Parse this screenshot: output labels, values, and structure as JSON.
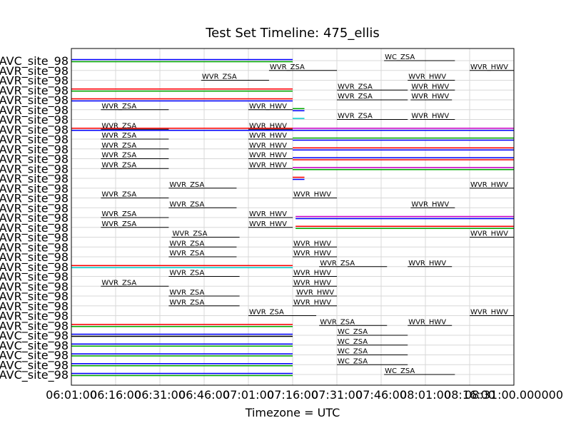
{
  "chart_data": {
    "type": "timeline",
    "title": "Test Set Timeline: 475_ellis",
    "xlabel": "Timezone = UTC",
    "xlim": [
      "06:01:00",
      "08:31:00"
    ],
    "x_ticks": [
      {
        "value": "06:01:00",
        "label": "06:01:00"
      },
      {
        "value": "06:16:00",
        "label": "06:16:00"
      },
      {
        "value": "06:31:00",
        "label": "06:31:00"
      },
      {
        "value": "06:46:00",
        "label": "06:46:00"
      },
      {
        "value": "07:01:00",
        "label": "07:01:00"
      },
      {
        "value": "07:16:00",
        "label": "07:16:00"
      },
      {
        "value": "07:31:00",
        "label": "07:31:00"
      },
      {
        "value": "07:46:00",
        "label": "07:46:00"
      },
      {
        "value": "08:01:00",
        "label": "08:01:00"
      },
      {
        "value": "08:16:00",
        "label": "08:16:00"
      },
      {
        "value": "08:31:00",
        "label": "08:31:00.000000"
      }
    ],
    "grid": true,
    "colors": {
      "blue": "#0000ff",
      "green": "#00aa00",
      "red": "#ff0000",
      "cyan": "#00cccc",
      "magenta": "#cc00cc",
      "black": "#000000"
    },
    "rows": [
      {
        "label": "AVC_site_98",
        "segments": [
          {
            "name": "WC_ZSA",
            "start": "07:47:00",
            "end": "08:11:00"
          }
        ],
        "bands": [
          {
            "start": "06:01:00",
            "end": "07:16:00",
            "colors": [
              "blue",
              "green"
            ]
          }
        ]
      },
      {
        "label": "AVR_site_98",
        "segments": [
          {
            "name": "WVR_ZSA",
            "start": "07:08:00",
            "end": "07:31:00"
          },
          {
            "name": "WVR_HWV",
            "start": "08:16:00",
            "end": "08:31:00"
          }
        ],
        "bands": []
      },
      {
        "label": "AVR_site_98",
        "segments": [
          {
            "name": "WVR_ZSA",
            "start": "06:45:00",
            "end": "07:08:00"
          },
          {
            "name": "WVR_HWV",
            "start": "07:55:00",
            "end": "08:11:00"
          }
        ],
        "bands": []
      },
      {
        "label": "AVR_site_98",
        "segments": [
          {
            "name": "WVR_ZSA",
            "start": "07:31:00",
            "end": "07:55:00"
          },
          {
            "name": "WVR_HWV",
            "start": "07:56:00",
            "end": "08:11:00"
          }
        ],
        "bands": [
          {
            "start": "06:01:00",
            "end": "07:16:00",
            "colors": [
              "red",
              "green"
            ]
          }
        ]
      },
      {
        "label": "AVR_site_98",
        "segments": [
          {
            "name": "WVR_ZSA",
            "start": "07:31:00",
            "end": "07:55:00"
          },
          {
            "name": "WVR_HWV",
            "start": "07:56:00",
            "end": "08:10:00"
          }
        ],
        "bands": [
          {
            "start": "06:01:00",
            "end": "07:16:00",
            "colors": [
              "red",
              "blue"
            ]
          }
        ]
      },
      {
        "label": "AVR_site_98",
        "segments": [
          {
            "name": "WVR_ZSA",
            "start": "06:11:00",
            "end": "06:34:00"
          },
          {
            "name": "WVR_HWV",
            "start": "07:01:00",
            "end": "07:16:00"
          }
        ],
        "bands": [
          {
            "start": "07:16:00",
            "end": "07:20:00",
            "colors": [
              "green",
              "blue"
            ]
          }
        ]
      },
      {
        "label": "AVR_site_98",
        "segments": [
          {
            "name": "WVR_ZSA",
            "start": "07:31:00",
            "end": "07:55:00"
          },
          {
            "name": "WVR_HWV",
            "start": "07:56:00",
            "end": "08:11:00"
          }
        ],
        "bands": [
          {
            "start": "07:16:00",
            "end": "07:20:00",
            "colors": [
              "cyan"
            ]
          }
        ]
      },
      {
        "label": "AVR_site_98",
        "segments": [
          {
            "name": "WVR_ZSA",
            "start": "06:11:00",
            "end": "06:34:00"
          },
          {
            "name": "WVR_HWV",
            "start": "07:01:00",
            "end": "07:16:00"
          }
        ],
        "bands": [
          {
            "start": "06:01:00",
            "end": "07:16:00",
            "colors": [
              "red",
              "blue"
            ]
          },
          {
            "start": "07:16:00",
            "end": "08:31:00",
            "colors": [
              "magenta",
              "blue"
            ]
          }
        ]
      },
      {
        "label": "AVR_site_98",
        "segments": [
          {
            "name": "WVR_ZSA",
            "start": "06:11:00",
            "end": "06:34:00"
          },
          {
            "name": "WVR_HWV",
            "start": "07:01:00",
            "end": "07:16:00"
          }
        ],
        "bands": [
          {
            "start": "07:16:00",
            "end": "08:31:00",
            "colors": [
              "green",
              "blue"
            ]
          }
        ]
      },
      {
        "label": "AVR_site_98",
        "segments": [
          {
            "name": "WVR_ZSA",
            "start": "06:11:00",
            "end": "06:34:00"
          },
          {
            "name": "WVR_HWV",
            "start": "07:01:00",
            "end": "07:16:00"
          }
        ],
        "bands": [
          {
            "start": "07:16:00",
            "end": "08:31:00",
            "colors": [
              "red",
              "blue"
            ]
          }
        ]
      },
      {
        "label": "AVR_site_98",
        "segments": [
          {
            "name": "WVR_ZSA",
            "start": "06:11:00",
            "end": "06:34:00"
          },
          {
            "name": "WVR_HWV",
            "start": "07:01:00",
            "end": "07:16:00"
          }
        ],
        "bands": [
          {
            "start": "07:16:00",
            "end": "08:31:00",
            "colors": [
              "blue",
              "red"
            ]
          }
        ]
      },
      {
        "label": "AVR_site_98",
        "segments": [
          {
            "name": "WVR_ZSA",
            "start": "06:11:00",
            "end": "06:34:00"
          },
          {
            "name": "WVR_HWV",
            "start": "07:01:00",
            "end": "07:16:00"
          }
        ],
        "bands": [
          {
            "start": "07:16:00",
            "end": "08:31:00",
            "colors": [
              "magenta",
              "green"
            ]
          }
        ]
      },
      {
        "label": "AVR_site_98",
        "segments": [],
        "bands": [
          {
            "start": "07:16:00",
            "end": "07:20:00",
            "colors": [
              "red",
              "blue"
            ]
          }
        ]
      },
      {
        "label": "AVR_site_98",
        "segments": [
          {
            "name": "WVR_ZSA",
            "start": "06:34:00",
            "end": "06:57:00"
          },
          {
            "name": "WVR_HWV",
            "start": "08:16:00",
            "end": "08:31:00"
          }
        ],
        "bands": []
      },
      {
        "label": "AVR_site_98",
        "segments": [
          {
            "name": "WVR_ZSA",
            "start": "06:11:00",
            "end": "06:34:00"
          },
          {
            "name": "WVR_HWV",
            "start": "07:16:00",
            "end": "07:31:00"
          }
        ],
        "bands": []
      },
      {
        "label": "AVR_site_98",
        "segments": [
          {
            "name": "WVR_ZSA",
            "start": "06:34:00",
            "end": "06:57:00"
          },
          {
            "name": "WVR_HWV",
            "start": "07:56:00",
            "end": "08:11:00"
          }
        ],
        "bands": []
      },
      {
        "label": "AVR_site_98",
        "segments": [
          {
            "name": "WVR_ZSA",
            "start": "06:11:00",
            "end": "06:34:00"
          },
          {
            "name": "WVR_HWV",
            "start": "07:01:00",
            "end": "07:16:00"
          }
        ],
        "bands": [
          {
            "start": "07:17:00",
            "end": "08:31:00",
            "colors": [
              "magenta",
              "blue"
            ]
          }
        ]
      },
      {
        "label": "AVR_site_98",
        "segments": [
          {
            "name": "WVR_ZSA",
            "start": "06:11:00",
            "end": "06:34:00"
          },
          {
            "name": "WVR_HWV",
            "start": "07:01:00",
            "end": "07:16:00"
          }
        ],
        "bands": [
          {
            "start": "07:17:00",
            "end": "08:31:00",
            "colors": [
              "red",
              "green"
            ]
          }
        ]
      },
      {
        "label": "AVR_site_98",
        "segments": [
          {
            "name": "WVR_ZSA",
            "start": "06:35:00",
            "end": "06:58:00"
          },
          {
            "name": "WVR_HWV",
            "start": "08:16:00",
            "end": "08:31:00"
          }
        ],
        "bands": []
      },
      {
        "label": "AVR_site_98",
        "segments": [
          {
            "name": "WVR_ZSA",
            "start": "06:34:00",
            "end": "06:57:00"
          },
          {
            "name": "WVR_HWV",
            "start": "07:16:00",
            "end": "07:31:00"
          }
        ],
        "bands": []
      },
      {
        "label": "AVR_site_98",
        "segments": [
          {
            "name": "WVR_ZSA",
            "start": "06:34:00",
            "end": "06:57:00"
          },
          {
            "name": "WVR_HWV",
            "start": "07:16:00",
            "end": "07:31:00"
          }
        ],
        "bands": []
      },
      {
        "label": "AVR_site_98",
        "segments": [
          {
            "name": "WVR_ZSA",
            "start": "07:25:00",
            "end": "07:48:00"
          },
          {
            "name": "WVR_HWV",
            "start": "07:55:00",
            "end": "08:10:00"
          }
        ],
        "bands": [
          {
            "start": "06:01:00",
            "end": "07:16:00",
            "colors": [
              "red",
              "cyan"
            ]
          }
        ]
      },
      {
        "label": "AVR_site_98",
        "segments": [
          {
            "name": "WVR_ZSA",
            "start": "06:34:00",
            "end": "06:58:00"
          },
          {
            "name": "WVR_HWV",
            "start": "07:16:00",
            "end": "07:31:00"
          }
        ],
        "bands": []
      },
      {
        "label": "AVR_site_98",
        "segments": [
          {
            "name": "WVR_ZSA",
            "start": "06:11:00",
            "end": "06:34:00"
          },
          {
            "name": "WVR_HWV",
            "start": "07:16:00",
            "end": "07:31:00"
          }
        ],
        "bands": []
      },
      {
        "label": "AVR_site_98",
        "segments": [
          {
            "name": "WVR_ZSA",
            "start": "06:34:00",
            "end": "06:58:00"
          },
          {
            "name": "WVR_HWV",
            "start": "07:17:00",
            "end": "07:31:00"
          }
        ],
        "bands": []
      },
      {
        "label": "AVR_site_98",
        "segments": [
          {
            "name": "WVR_ZSA",
            "start": "06:34:00",
            "end": "06:58:00"
          },
          {
            "name": "WVR_HWV",
            "start": "07:16:00",
            "end": "07:31:00"
          }
        ],
        "bands": []
      },
      {
        "label": "AVR_site_98",
        "segments": [
          {
            "name": "WVR_ZSA",
            "start": "07:01:00",
            "end": "07:24:00"
          },
          {
            "name": "WVR_HWV",
            "start": "08:16:00",
            "end": "08:31:00"
          }
        ],
        "bands": []
      },
      {
        "label": "AVR_site_98",
        "segments": [
          {
            "name": "WVR_ZSA",
            "start": "07:25:00",
            "end": "07:48:00"
          },
          {
            "name": "WVR_HWV",
            "start": "07:55:00",
            "end": "08:10:00"
          }
        ],
        "bands": [
          {
            "start": "06:01:00",
            "end": "07:16:00",
            "colors": [
              "red",
              "green"
            ]
          }
        ]
      },
      {
        "label": "AVC_site_98",
        "segments": [
          {
            "name": "WC_ZSA",
            "start": "07:31:00",
            "end": "07:55:00"
          }
        ],
        "bands": [
          {
            "start": "06:01:00",
            "end": "07:16:00",
            "colors": [
              "blue",
              "black"
            ]
          }
        ]
      },
      {
        "label": "AVC_site_98",
        "segments": [
          {
            "name": "WC_ZSA",
            "start": "07:31:00",
            "end": "07:55:00"
          }
        ],
        "bands": [
          {
            "start": "06:01:00",
            "end": "07:16:00",
            "colors": [
              "blue",
              "green"
            ]
          }
        ]
      },
      {
        "label": "AVC_site_98",
        "segments": [
          {
            "name": "WC_ZSA",
            "start": "07:31:00",
            "end": "07:55:00"
          }
        ],
        "bands": [
          {
            "start": "06:01:00",
            "end": "07:16:00",
            "colors": [
              "blue",
              "green"
            ]
          }
        ]
      },
      {
        "label": "AVC_site_98",
        "segments": [
          {
            "name": "WC_ZSA",
            "start": "07:31:00",
            "end": "07:55:00"
          }
        ],
        "bands": [
          {
            "start": "06:01:00",
            "end": "07:16:00",
            "colors": [
              "blue",
              "green"
            ]
          }
        ]
      },
      {
        "label": "AVC_site_98",
        "segments": [
          {
            "name": "WC_ZSA",
            "start": "07:47:00",
            "end": "08:11:00"
          }
        ],
        "bands": [
          {
            "start": "06:01:00",
            "end": "07:16:00",
            "colors": [
              "blue",
              "green"
            ]
          }
        ]
      }
    ]
  }
}
